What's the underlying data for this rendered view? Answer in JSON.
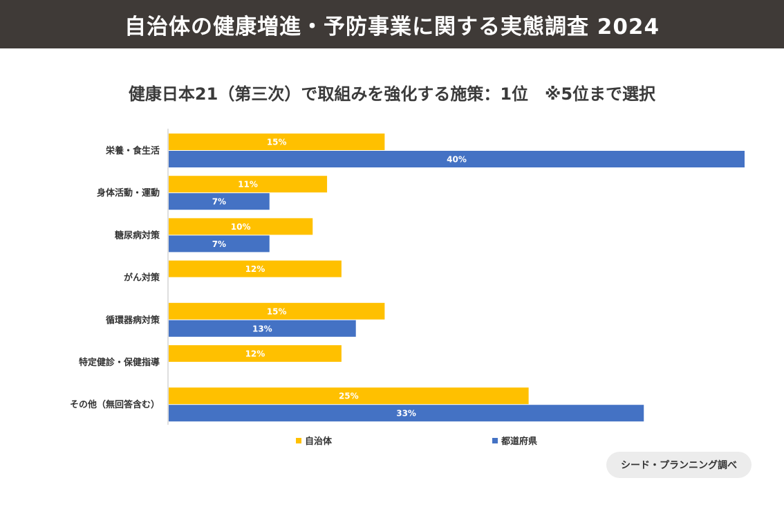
{
  "header": {
    "title": "自治体の健康増進・予防事業に関する実態調査 2024"
  },
  "source": "シード・プランニング調べ",
  "chart_data": {
    "type": "bar",
    "orientation": "horizontal",
    "title": "健康日本21（第三次）で取組みを強化する施策：1位　※5位まで選択",
    "categories": [
      "栄養・食生活",
      "身体活動・運動",
      "糖尿病対策",
      "がん対策",
      "循環器病対策",
      "特定健診・保健指導",
      "その他（無回答含む）"
    ],
    "series": [
      {
        "name": "自治体",
        "color": "#ffc000",
        "values": [
          15,
          11,
          10,
          12,
          15,
          12,
          25
        ],
        "labels": [
          "15%",
          "11%",
          "10%",
          "12%",
          "15%",
          "12%",
          "25%"
        ]
      },
      {
        "name": "都道府県",
        "color": "#4472c4",
        "values": [
          40,
          7,
          7,
          null,
          13,
          null,
          33
        ],
        "labels": [
          "40%",
          "7%",
          "7%",
          "",
          "13%",
          "",
          "33%"
        ]
      }
    ],
    "xlim": [
      0,
      40
    ],
    "grid": false,
    "legend_position": "bottom"
  }
}
